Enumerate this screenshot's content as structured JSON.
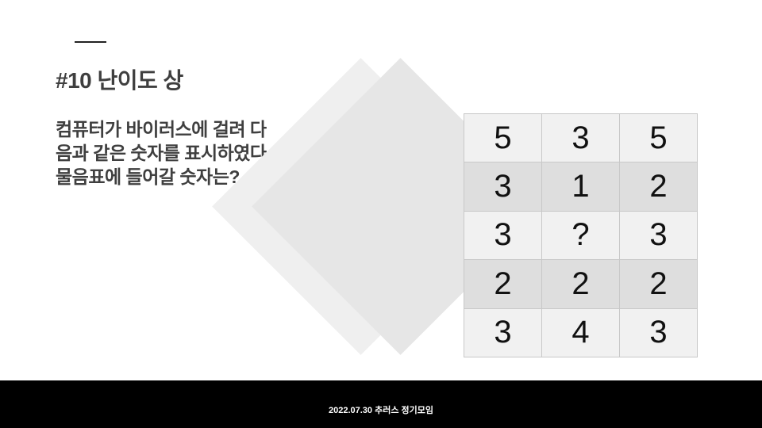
{
  "slide": {
    "title": "#10 난이도 상",
    "question_lines": [
      "컴퓨터가 바이러스에 걸려 다",
      "음과 같은 숫자를 표시하였다.",
      "물음표에 들어갈 숫자는?"
    ]
  },
  "grid": {
    "rows": [
      [
        "5",
        "3",
        "5"
      ],
      [
        "3",
        "1",
        "2"
      ],
      [
        "3",
        "?",
        "3"
      ],
      [
        "2",
        "2",
        "2"
      ],
      [
        "3",
        "4",
        "3"
      ]
    ]
  },
  "footer": {
    "text": "2022.07.30 추러스 정기모임"
  }
}
